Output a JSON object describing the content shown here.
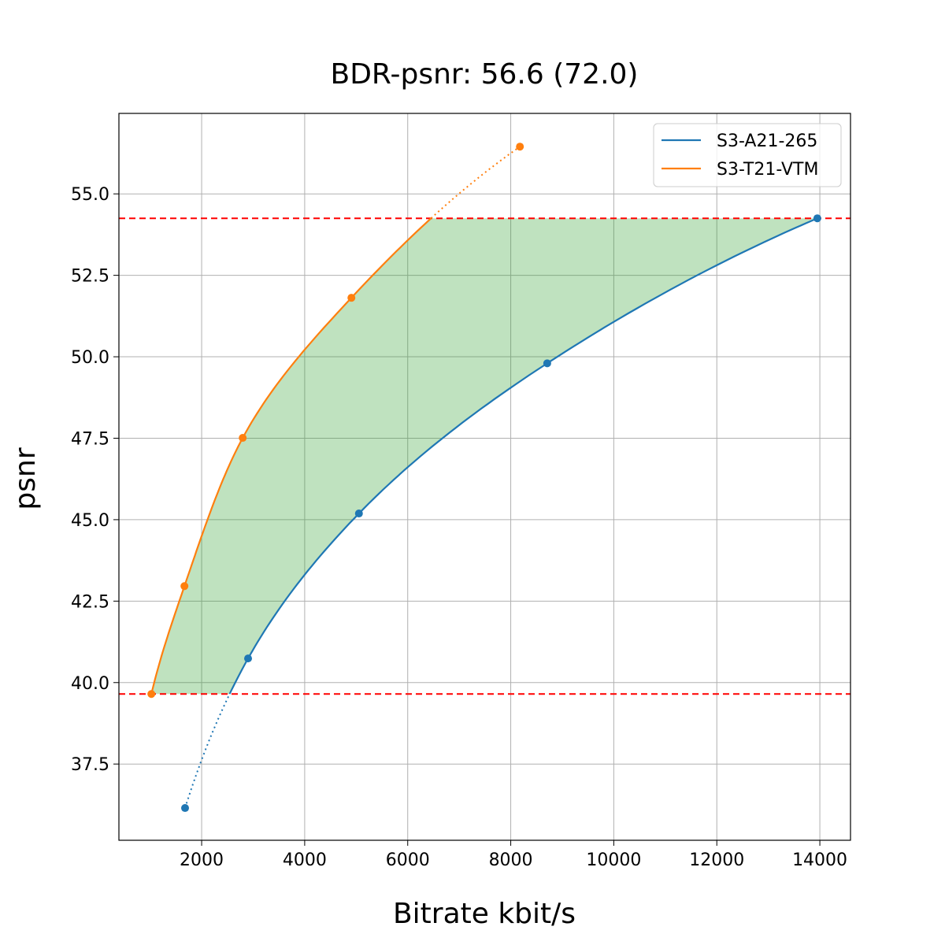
{
  "chart_data": {
    "type": "line",
    "title": "BDR-psnr: 56.6 (72.0)",
    "xlabel": "Bitrate kbit/s",
    "ylabel": "psnr",
    "xlim": [
      394,
      14595
    ],
    "ylim": [
      35.16,
      57.47
    ],
    "xticks": [
      2000,
      4000,
      6000,
      8000,
      10000,
      12000,
      14000
    ],
    "yticks": [
      37.5,
      40.0,
      42.5,
      45.0,
      47.5,
      50.0,
      52.5,
      55.0
    ],
    "ytick_labels": [
      "37.5",
      "40.0",
      "42.5",
      "45.0",
      "47.5",
      "50.0",
      "52.5",
      "55.0"
    ],
    "grid": true,
    "legend_position": "top-right",
    "series": [
      {
        "name": "S3-A21-265",
        "color": "#1f77b4",
        "x": [
          1678,
          2901,
          5053,
          8708,
          13951
        ],
        "y": [
          36.15,
          40.74,
          45.19,
          49.8,
          54.25
        ]
      },
      {
        "name": "S3-T21-VTM",
        "color": "#ff7f0e",
        "x": [
          1024,
          1666,
          2797,
          4907,
          8178
        ],
        "y": [
          39.65,
          42.96,
          47.51,
          51.81,
          56.45
        ]
      }
    ],
    "reference_lines": {
      "orientation": "horizontal",
      "style": "dashed",
      "color": "#ff0000",
      "y": [
        39.65,
        54.25
      ]
    },
    "fill_between": {
      "color": "#2ca02c",
      "opacity": 0.3,
      "y_range": [
        39.65,
        54.25
      ]
    }
  }
}
